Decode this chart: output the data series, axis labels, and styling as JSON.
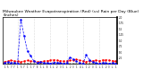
{
  "title": "Milwaukee Weather Evapotranspiration (Red) (vs) Rain per Day (Blue) (Inches)",
  "title_fontsize": 3.2,
  "blue_values": [
    0.04,
    0.08,
    0.05,
    0.06,
    0.03,
    1.9,
    1.2,
    0.55,
    0.35,
    0.12,
    0.06,
    0.08,
    0.05,
    0.04,
    0.02,
    0.07,
    0.06,
    0.04,
    0.03,
    0.05,
    0.28,
    0.22,
    0.12,
    0.04,
    0.02,
    0.38,
    0.18,
    0.08,
    0.04,
    0.02,
    0.06,
    0.04,
    0.03,
    0.05,
    0.03
  ],
  "red_values": [
    0.1,
    0.12,
    0.15,
    0.13,
    0.11,
    0.09,
    0.12,
    0.15,
    0.13,
    0.11,
    0.09,
    0.1,
    0.12,
    0.14,
    0.16,
    0.18,
    0.16,
    0.14,
    0.12,
    0.13,
    0.15,
    0.17,
    0.19,
    0.16,
    0.13,
    0.1,
    0.12,
    0.14,
    0.16,
    0.14,
    0.17,
    0.18,
    0.16,
    0.14,
    0.12
  ],
  "black_values": [
    0.01,
    0.02,
    0.01,
    0.02,
    0.01,
    0.02,
    0.01,
    0.03,
    0.02,
    0.01,
    0.01,
    0.02,
    0.02,
    0.01,
    0.01,
    0.02,
    0.02,
    0.01,
    0.01,
    0.02,
    0.01,
    0.02,
    0.01,
    0.02,
    0.01,
    0.01,
    0.02,
    0.02,
    0.01,
    0.01,
    0.02,
    0.01,
    0.02,
    0.01,
    0.01
  ],
  "x_tick_positions": [
    0,
    1,
    2,
    3,
    4,
    5,
    6,
    7,
    8,
    9,
    10,
    11,
    12,
    13,
    14,
    15,
    16,
    17,
    18,
    19,
    20,
    21,
    22,
    23,
    24,
    25,
    26,
    27,
    28,
    29,
    30,
    31,
    32,
    33,
    34
  ],
  "x_tick_labels": [
    "1",
    "5",
    "7",
    "7",
    "1",
    "5",
    "7",
    "1",
    "1",
    "7",
    "E",
    "1",
    "L",
    "E",
    "1",
    "L",
    "2",
    "3",
    "1",
    "L",
    "2",
    "3",
    "1",
    "4",
    "L",
    "1",
    "2",
    "3",
    "1",
    "L",
    "1",
    "2",
    "3",
    "L",
    "1"
  ],
  "ylim": [
    0,
    2.0
  ],
  "ytick_positions": [
    0.25,
    0.5,
    0.75,
    1.0,
    1.25,
    1.5,
    1.75,
    2.0
  ],
  "ytick_labels": [
    ".25",
    ".50",
    ".75",
    "1.0",
    "1.25",
    "1.5",
    "1.75",
    "2.0"
  ],
  "background_color": "#ffffff",
  "vline_color": "#bbbbbb",
  "vline_positions": [
    4,
    9,
    14,
    19,
    24,
    29
  ]
}
